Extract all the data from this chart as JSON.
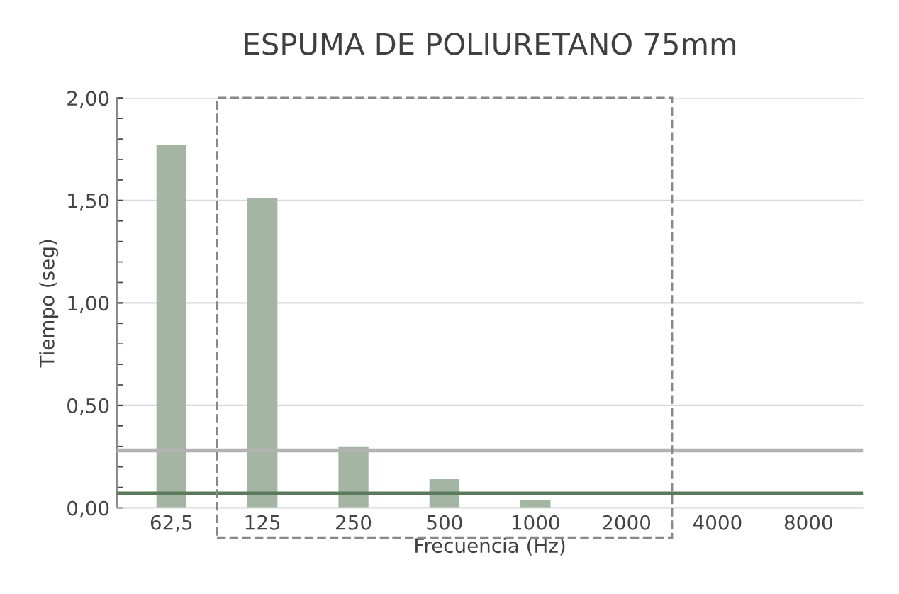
{
  "chart_data": {
    "type": "bar",
    "title": "ESPUMA DE POLIURETANO 75mm",
    "xlabel": "Frecuencia (Hz)",
    "ylabel": "Tiempo (seg)",
    "categories": [
      "62,5",
      "125",
      "250",
      "500",
      "1000",
      "2000",
      "4000",
      "8000"
    ],
    "values": [
      1.77,
      1.51,
      0.3,
      0.14,
      0.04,
      null,
      null,
      null
    ],
    "color": "#a5b5a3",
    "ylim": [
      0,
      2
    ],
    "yticks": [
      {
        "value": 0,
        "label": "0,00"
      },
      {
        "value": 0.1,
        "label": null
      },
      {
        "value": 0.2,
        "label": null
      },
      {
        "value": 0.3,
        "label": null
      },
      {
        "value": 0.4,
        "label": null
      },
      {
        "value": 0.5,
        "label": "0,50"
      },
      {
        "value": 0.6,
        "label": null
      },
      {
        "value": 0.7,
        "label": null
      },
      {
        "value": 0.8,
        "label": null
      },
      {
        "value": 0.9,
        "label": null
      },
      {
        "value": 1.0,
        "label": "1,00"
      },
      {
        "value": 1.1,
        "label": null
      },
      {
        "value": 1.2,
        "label": null
      },
      {
        "value": 1.3,
        "label": null
      },
      {
        "value": 1.4,
        "label": null
      },
      {
        "value": 1.5,
        "label": "1,50"
      },
      {
        "value": 1.6,
        "label": null
      },
      {
        "value": 1.7,
        "label": null
      },
      {
        "value": 1.8,
        "label": null
      },
      {
        "value": 1.9,
        "label": null
      },
      {
        "value": 2.0,
        "label": "2,00"
      }
    ],
    "ref_lines": [
      {
        "axis": "y",
        "value": 0.28,
        "color": "#b3b3b3"
      },
      {
        "axis": "y",
        "value": 0.07,
        "color": "#5b7a5c"
      }
    ],
    "grid": "y"
  }
}
